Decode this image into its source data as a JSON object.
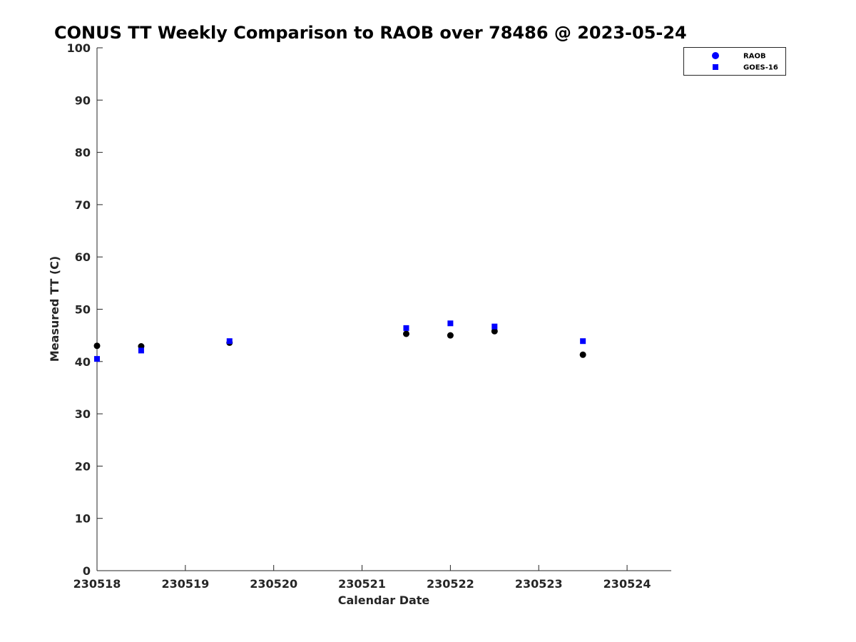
{
  "chart_data": {
    "type": "scatter",
    "title": "CONUS TT Weekly Comparison to RAOB over 78486 @ 2023-05-24",
    "xlabel": "Calendar Date",
    "ylabel": "Measured TT (C)",
    "xlim": [
      "2023-05-18",
      "2023-05-24 12:00"
    ],
    "ylim": [
      0,
      100
    ],
    "x_ticks": [
      "230518",
      "230519",
      "230520",
      "230521",
      "230522",
      "230523",
      "230524"
    ],
    "y_ticks": [
      "0",
      "10",
      "20",
      "30",
      "40",
      "50",
      "60",
      "70",
      "80",
      "90",
      "100"
    ],
    "grid": false,
    "legend_position": "top-right",
    "series": [
      {
        "name": "RAOB",
        "marker": "circle",
        "color": "#000000",
        "legend_color": "#0000ff",
        "x": [
          "2023-05-18 00:00",
          "2023-05-18 12:00",
          "2023-05-19 12:00",
          "2023-05-21 12:00",
          "2023-05-22 00:00",
          "2023-05-22 12:00",
          "2023-05-23 12:00"
        ],
        "y": [
          43.0,
          42.9,
          43.6,
          45.3,
          45.0,
          45.8,
          41.3
        ]
      },
      {
        "name": "GOES-16",
        "marker": "square",
        "color": "#0000ff",
        "x": [
          "2023-05-18 00:00",
          "2023-05-18 12:00",
          "2023-05-19 12:00",
          "2023-05-21 12:00",
          "2023-05-22 00:00",
          "2023-05-22 12:00",
          "2023-05-23 12:00"
        ],
        "y": [
          40.5,
          42.1,
          43.9,
          46.4,
          47.3,
          46.7,
          43.9
        ]
      }
    ]
  }
}
